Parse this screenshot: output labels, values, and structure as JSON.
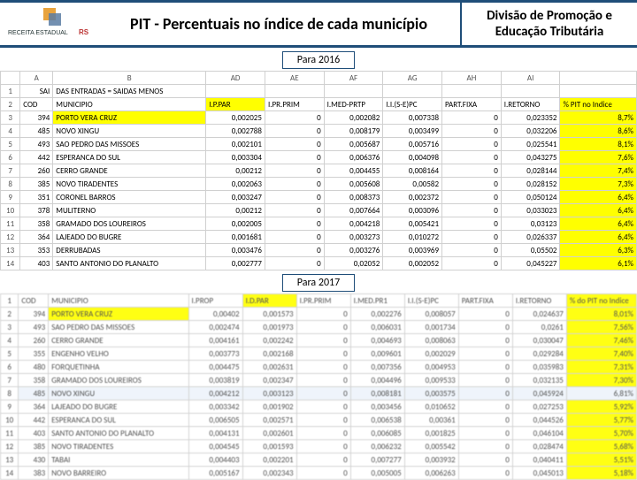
{
  "header": {
    "title": "PIT - Percentuais no índice de cada município",
    "right": "Divisão de Promoção e Educação Tributária",
    "logo_text_top": "RECEITA ESTADUAL",
    "logo_text_state": "RS"
  },
  "years": {
    "y1": "Para 2016",
    "y2": "Para 2017"
  },
  "t2016": {
    "cols": {
      "rn": "",
      "A": "A",
      "B": "B",
      "C": "",
      "D": "",
      "E": "AD",
      "F": "AE",
      "G": "AF",
      "H": "AG",
      "I": "AH",
      "J": "AI"
    },
    "hdr": {
      "A": "SAI",
      "B": "DAS ENTRADAS = SAIDAS MENOS",
      "C": "",
      "D": "",
      "E": "",
      "F": "",
      "G": "",
      "H": "",
      "I": "",
      "J": ""
    },
    "hdr2": {
      "A": "COD",
      "B": "MUNICIPIO",
      "C": "I.P.PAR",
      "D": "I.PR.PRIM",
      "E": "I.MED-PRTP",
      "F": "I.I.(S-E)PC",
      "G": "PART.FIXA",
      "H": "I.RETORNO",
      "I": "",
      "J": "% PIT no Indice"
    },
    "rows": [
      {
        "n": "3",
        "A": "394",
        "B": "PORTO VERA CRUZ",
        "C": "0,002025",
        "D": "0",
        "E": "0,002082",
        "F": "0,007338",
        "G": "0",
        "H": "0,023352",
        "J": "8,7%",
        "hlB": true,
        "hlJ": true
      },
      {
        "n": "4",
        "A": "485",
        "B": "NOVO XINGU",
        "C": "0,002788",
        "D": "0",
        "E": "0,008179",
        "F": "0,003499",
        "G": "0",
        "H": "0,032206",
        "J": "8,6%",
        "hlJ": true
      },
      {
        "n": "5",
        "A": "493",
        "B": "SAO PEDRO DAS MISSOES",
        "C": "0,002101",
        "D": "0",
        "E": "0,005687",
        "F": "0,005716",
        "G": "0",
        "H": "0,025541",
        "J": "8,1%",
        "hlJ": true
      },
      {
        "n": "6",
        "A": "442",
        "B": "ESPERANCA DO SUL",
        "C": "0,003304",
        "D": "0",
        "E": "0,006376",
        "F": "0,004098",
        "G": "0",
        "H": "0,043275",
        "J": "7,6%",
        "hlJ": true
      },
      {
        "n": "7",
        "A": "260",
        "B": "CERRO GRANDE",
        "C": "0,00212",
        "D": "0",
        "E": "0,004455",
        "F": "0,008164",
        "G": "0",
        "H": "0,028144",
        "J": "7,4%",
        "hlJ": true
      },
      {
        "n": "8",
        "A": "385",
        "B": "NOVO TIRADENTES",
        "C": "0,002063",
        "D": "0",
        "E": "0,005608",
        "F": "0,00582",
        "G": "0",
        "H": "0,028152",
        "J": "7,3%",
        "hlJ": true
      },
      {
        "n": "9",
        "A": "351",
        "B": "CORONEL BARROS",
        "C": "0,003247",
        "D": "0",
        "E": "0,008373",
        "F": "0,002372",
        "G": "0",
        "H": "0,050124",
        "J": "6,4%",
        "hlJ": true
      },
      {
        "n": "10",
        "A": "378",
        "B": "MULITERNO",
        "C": "0,00212",
        "D": "0",
        "E": "0,007664",
        "F": "0,003096",
        "G": "0",
        "H": "0,033023",
        "J": "6,4%",
        "hlJ": true
      },
      {
        "n": "11",
        "A": "358",
        "B": "GRAMADO DOS LOUREIROS",
        "C": "0,002005",
        "D": "0",
        "E": "0,004218",
        "F": "0,005421",
        "G": "0",
        "H": "0,03123",
        "J": "6,4%",
        "hlJ": true
      },
      {
        "n": "12",
        "A": "364",
        "B": "LAJEADO DO BUGRE",
        "C": "0,001681",
        "D": "0",
        "E": "0,003273",
        "F": "0,010272",
        "G": "0",
        "H": "0,026337",
        "J": "6,4%",
        "hlJ": true
      },
      {
        "n": "13",
        "A": "353",
        "B": "DERRUBADAS",
        "C": "0,003476",
        "D": "0",
        "E": "0,003276",
        "F": "0,003969",
        "G": "0",
        "H": "0,05502",
        "J": "6,3%",
        "hlJ": true
      },
      {
        "n": "14",
        "A": "403",
        "B": "SANTO ANTONIO DO PLANALTO",
        "C": "0,002777",
        "D": "0",
        "E": "0,02052",
        "F": "0,002052",
        "G": "0",
        "H": "0,045227",
        "J": "6,1%",
        "hlJ": true
      }
    ]
  },
  "t2017": {
    "cols": {
      "rn": "",
      "A": "",
      "B": "",
      "C": "",
      "D": "",
      "E": "",
      "F": "",
      "G": "",
      "H": "",
      "I": "",
      "J": ""
    },
    "hdr": {
      "A": "COD",
      "B": "MUNICIPIO",
      "C": "I.PROP",
      "D": "I.D.PAR",
      "E": "I.PR.PRIM",
      "F": "I.MED.PR1",
      "G": "I.I.(S-E)PC",
      "H": "PART.FIXA",
      "I": "I.RETORNO",
      "J": "% do PIT no Indice"
    },
    "rows": [
      {
        "n": "2",
        "A": "394",
        "B": "PORTO VERA CRUZ",
        "C": "0,00402",
        "D": "0,001573",
        "E": "0",
        "F": "0,002276",
        "G": "0,008057",
        "H": "0",
        "I": "0,024637",
        "J": "8,01%",
        "hlB": true,
        "hlJ": true
      },
      {
        "n": "3",
        "A": "493",
        "B": "SAO PEDRO DAS MISSOES",
        "C": "0,002474",
        "D": "0,001973",
        "E": "0",
        "F": "0,006031",
        "G": "0,001734",
        "H": "0",
        "I": "0,0261",
        "J": "7,56%",
        "hlJ": true
      },
      {
        "n": "4",
        "A": "260",
        "B": "CERRO GRANDE",
        "C": "0,004161",
        "D": "0,002242",
        "E": "0",
        "F": "0,004693",
        "G": "0,008063",
        "H": "0",
        "I": "0,030047",
        "J": "7,46%",
        "hlJ": true
      },
      {
        "n": "5",
        "A": "355",
        "B": "ENGENHO VELHO",
        "C": "0,003773",
        "D": "0,002168",
        "E": "0",
        "F": "0,009601",
        "G": "0,002029",
        "H": "0",
        "I": "0,029284",
        "J": "7,40%",
        "hlJ": true
      },
      {
        "n": "6",
        "A": "480",
        "B": "FORQUETINHA",
        "C": "0,004475",
        "D": "0,002631",
        "E": "0",
        "F": "0,007356",
        "G": "0,004953",
        "H": "0",
        "I": "0,035983",
        "J": "7,31%",
        "hlJ": true
      },
      {
        "n": "7",
        "A": "358",
        "B": "GRAMADO DOS LOUREIROS",
        "C": "0,003819",
        "D": "0,002347",
        "E": "0",
        "F": "0,004496",
        "G": "0,009533",
        "H": "0",
        "I": "0,032135",
        "J": "7,30%",
        "hlJ": true
      },
      {
        "n": "8",
        "A": "485",
        "B": "NOVO XINGU",
        "C": "0,004212",
        "D": "0,003123",
        "E": "0",
        "F": "0,008181",
        "G": "0,003575",
        "H": "0",
        "I": "0,045924",
        "J": "6,81%",
        "hlJ": true,
        "sel": true
      },
      {
        "n": "9",
        "A": "364",
        "B": "LAJEADO DO BUGRE",
        "C": "0,003342",
        "D": "0,001902",
        "E": "0",
        "F": "0,003456",
        "G": "0,010652",
        "H": "0",
        "I": "0,027253",
        "J": "5,92%",
        "hlJ": true
      },
      {
        "n": "10",
        "A": "442",
        "B": "ESPERANCA DO SUL",
        "C": "0,006505",
        "D": "0,002571",
        "E": "0",
        "F": "0,006538",
        "G": "0,00361",
        "H": "0",
        "I": "0,044526",
        "J": "5,77%",
        "hlJ": true
      },
      {
        "n": "11",
        "A": "403",
        "B": "SANTO ANTONIO DO PLANALTO",
        "C": "0,004131",
        "D": "0,002601",
        "E": "0",
        "F": "0,006085",
        "G": "0,001825",
        "H": "0",
        "I": "0,046104",
        "J": "5,70%",
        "hlJ": true
      },
      {
        "n": "12",
        "A": "385",
        "B": "NOVO TIRADENTES",
        "C": "0,004545",
        "D": "0,001593",
        "E": "0",
        "F": "0,006232",
        "G": "0,005542",
        "H": "0",
        "I": "0,028474",
        "J": "5,68%",
        "hlJ": true
      },
      {
        "n": "13",
        "A": "430",
        "B": "TABAI",
        "C": "0,004403",
        "D": "0,002201",
        "E": "0",
        "F": "0,007277",
        "G": "0,003932",
        "H": "0",
        "I": "0,040411",
        "J": "5,51%",
        "hlJ": true
      },
      {
        "n": "14",
        "A": "383",
        "B": "NOVO BARREIRO",
        "C": "0,005167",
        "D": "0,002343",
        "E": "0",
        "F": "0,005005",
        "G": "0,006263",
        "H": "0",
        "I": "0,045013",
        "J": "5,18%",
        "hlJ": true
      }
    ]
  }
}
